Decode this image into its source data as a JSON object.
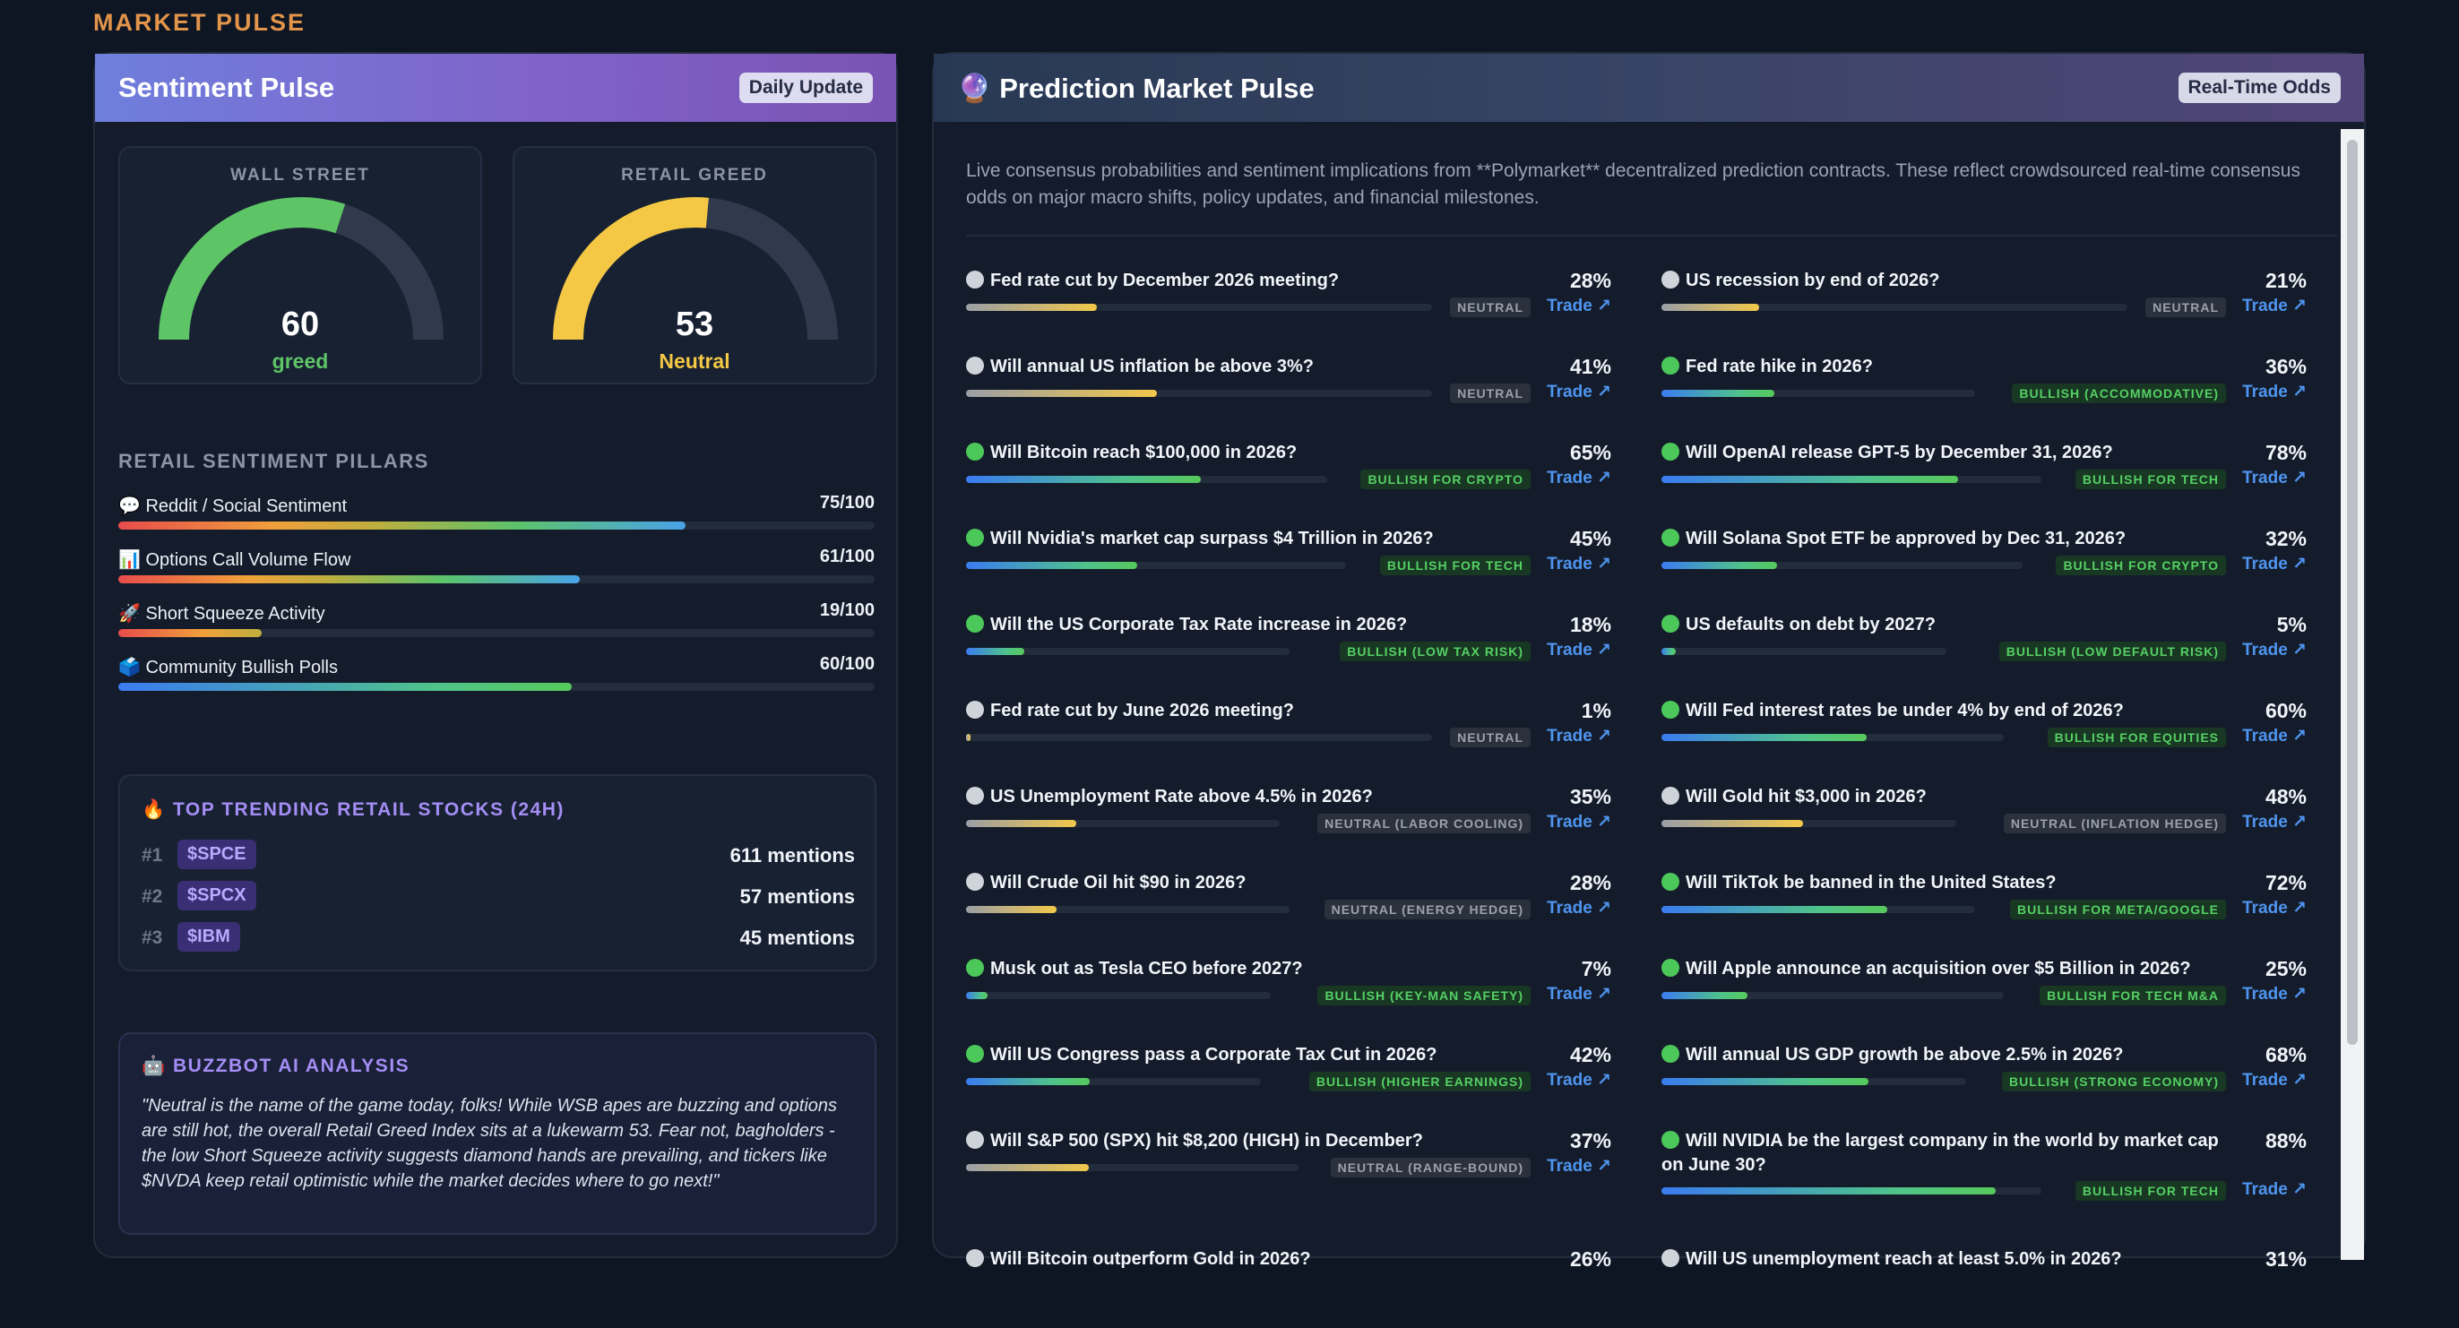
{
  "section_title": "MARKET PULSE",
  "sentiment": {
    "title": "Sentiment Pulse",
    "badge": "Daily Update",
    "gauges": [
      {
        "label": "WALL STREET",
        "value": 60,
        "value_text": "60",
        "sub": "greed",
        "color": "#5ec566"
      },
      {
        "label": "RETAIL GREED",
        "value": 53,
        "value_text": "53",
        "sub": "Neutral",
        "color": "#f4c844"
      }
    ],
    "pillars_title": "RETAIL SENTIMENT PILLARS",
    "pillars": [
      {
        "label": "💬 Reddit / Social Sentiment",
        "score": "75/100",
        "value": 75
      },
      {
        "label": "📊 Options Call Volume Flow",
        "score": "61/100",
        "value": 61
      },
      {
        "label": "🚀 Short Squeeze Activity",
        "score": "19/100",
        "value": 19
      },
      {
        "label": "🗳️ Community Bullish Polls",
        "score": "60/100",
        "value": 60
      }
    ],
    "trending": {
      "title": "🔥 TOP TRENDING RETAIL STOCKS (24H)",
      "items": [
        {
          "rank": "#1",
          "ticker": "$SPCE",
          "mentions": "611 mentions"
        },
        {
          "rank": "#2",
          "ticker": "$SPCX",
          "mentions": "57 mentions"
        },
        {
          "rank": "#3",
          "ticker": "$IBM",
          "mentions": "45 mentions"
        }
      ]
    },
    "ai": {
      "title": "🤖 BUZZBOT AI ANALYSIS",
      "text": "\"Neutral is the name of the game today, folks! While WSB apes are buzzing and options are still hot, the overall Retail Greed Index sits at a lukewarm 53. Fear not, bagholders - the low Short Squeeze activity suggests diamond hands are prevailing, and tickers like $NVDA keep retail optimistic while the market decides where to go next!\""
    }
  },
  "prediction": {
    "title": "🔮 Prediction Market Pulse",
    "badge": "Real-Time Odds",
    "description": "Live consensus probabilities and sentiment implications from **Polymarket** decentralized prediction contracts. These reflect crowdsourced real-time consensus odds on major macro shifts, policy updates, and financial milestones.",
    "trade_label": "Trade ↗",
    "colors": {
      "neutral": "#cfd3da",
      "bullish": "#4cc85a"
    },
    "left": [
      {
        "q": "Fed rate cut by December 2026 meeting?",
        "pct": "28%",
        "value": 28,
        "tag": "NEUTRAL",
        "kind": "neutral"
      },
      {
        "q": "Will annual US inflation be above 3%?",
        "pct": "41%",
        "value": 41,
        "tag": "NEUTRAL",
        "kind": "neutral"
      },
      {
        "q": "Will Bitcoin reach $100,000 in 2026?",
        "pct": "65%",
        "value": 65,
        "tag": "BULLISH FOR CRYPTO",
        "kind": "bullish"
      },
      {
        "q": "Will Nvidia's market cap surpass $4 Trillion in 2026?",
        "pct": "45%",
        "value": 45,
        "tag": "BULLISH FOR TECH",
        "kind": "bullish"
      },
      {
        "q": "Will the US Corporate Tax Rate increase in 2026?",
        "pct": "18%",
        "value": 18,
        "tag": "BULLISH (LOW TAX RISK)",
        "kind": "bullish"
      },
      {
        "q": "Fed rate cut by June 2026 meeting?",
        "pct": "1%",
        "value": 1,
        "tag": "NEUTRAL",
        "kind": "neutral"
      },
      {
        "q": "US Unemployment Rate above 4.5% in 2026?",
        "pct": "35%",
        "value": 35,
        "tag": "NEUTRAL (LABOR COOLING)",
        "kind": "neutral"
      },
      {
        "q": "Will Crude Oil hit $90 in 2026?",
        "pct": "28%",
        "value": 28,
        "tag": "NEUTRAL (ENERGY HEDGE)",
        "kind": "neutral"
      },
      {
        "q": "Musk out as Tesla CEO before 2027?",
        "pct": "7%",
        "value": 7,
        "tag": "BULLISH (KEY-MAN SAFETY)",
        "kind": "bullish"
      },
      {
        "q": "Will US Congress pass a Corporate Tax Cut in 2026?",
        "pct": "42%",
        "value": 42,
        "tag": "BULLISH (HIGHER EARNINGS)",
        "kind": "bullish"
      },
      {
        "q": "Will S&P 500 (SPX) hit $8,200 (HIGH) in December?",
        "pct": "37%",
        "value": 37,
        "tag": "NEUTRAL (RANGE-BOUND)",
        "kind": "neutral"
      },
      {
        "q": "Will Bitcoin outperform Gold in 2026?",
        "pct": "26%",
        "value": 26,
        "tag": "",
        "kind": "neutral"
      }
    ],
    "right": [
      {
        "q": "US recession by end of 2026?",
        "pct": "21%",
        "value": 21,
        "tag": "NEUTRAL",
        "kind": "neutral"
      },
      {
        "q": "Fed rate hike in 2026?",
        "pct": "36%",
        "value": 36,
        "tag": "BULLISH (ACCOMMODATIVE)",
        "kind": "bullish"
      },
      {
        "q": "Will OpenAI release GPT-5 by December 31, 2026?",
        "pct": "78%",
        "value": 78,
        "tag": "BULLISH FOR TECH",
        "kind": "bullish"
      },
      {
        "q": "Will Solana Spot ETF be approved by Dec 31, 2026?",
        "pct": "32%",
        "value": 32,
        "tag": "BULLISH FOR CRYPTO",
        "kind": "bullish"
      },
      {
        "q": "US defaults on debt by 2027?",
        "pct": "5%",
        "value": 5,
        "tag": "BULLISH (LOW DEFAULT RISK)",
        "kind": "bullish"
      },
      {
        "q": "Will Fed interest rates be under 4% by end of 2026?",
        "pct": "60%",
        "value": 60,
        "tag": "BULLISH FOR EQUITIES",
        "kind": "bullish"
      },
      {
        "q": "Will Gold hit $3,000 in 2026?",
        "pct": "48%",
        "value": 48,
        "tag": "NEUTRAL (INFLATION HEDGE)",
        "kind": "neutral"
      },
      {
        "q": "Will TikTok be banned in the United States?",
        "pct": "72%",
        "value": 72,
        "tag": "BULLISH FOR META/GOOGLE",
        "kind": "bullish"
      },
      {
        "q": "Will Apple announce an acquisition over $5 Billion in 2026?",
        "pct": "25%",
        "value": 25,
        "tag": "BULLISH FOR TECH M&A",
        "kind": "bullish"
      },
      {
        "q": "Will annual US GDP growth be above 2.5% in 2026?",
        "pct": "68%",
        "value": 68,
        "tag": "BULLISH (STRONG ECONOMY)",
        "kind": "bullish"
      },
      {
        "q": "Will NVIDIA be the largest company in the world by market cap on June 30?",
        "pct": "88%",
        "value": 88,
        "tag": "BULLISH FOR TECH",
        "kind": "bullish"
      },
      {
        "q": "Will US unemployment reach at least 5.0% in 2026?",
        "pct": "31%",
        "value": 31,
        "tag": "",
        "kind": "neutral"
      }
    ]
  }
}
